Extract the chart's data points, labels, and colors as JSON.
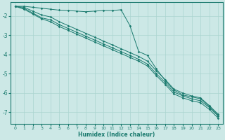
{
  "xlabel": "Humidex (Indice chaleur)",
  "background_color": "#cce8e6",
  "grid_color": "#aad4d0",
  "line_color": "#1a7a6e",
  "xlim": [
    -0.5,
    23.5
  ],
  "ylim": [
    -7.6,
    -1.3
  ],
  "yticks": [
    -7,
    -6,
    -5,
    -4,
    -3,
    -2
  ],
  "xticks": [
    0,
    1,
    2,
    3,
    4,
    5,
    6,
    7,
    8,
    9,
    10,
    11,
    12,
    13,
    14,
    15,
    16,
    17,
    18,
    19,
    20,
    21,
    22,
    23
  ],
  "series1_x": [
    0,
    1,
    2,
    3,
    4,
    5,
    6,
    7,
    8,
    9,
    10,
    11,
    12,
    13,
    14,
    15,
    16,
    17,
    18,
    19,
    20,
    21,
    22,
    23
  ],
  "series1_y": [
    -1.5,
    -1.5,
    -1.55,
    -1.6,
    -1.65,
    -1.7,
    -1.72,
    -1.75,
    -1.78,
    -1.75,
    -1.72,
    -1.72,
    -1.68,
    -2.5,
    -3.85,
    -4.05,
    -4.75,
    -5.35,
    -5.85,
    -6.1,
    -6.2,
    -6.3,
    -6.7,
    -7.15
  ],
  "series2_x": [
    0,
    1,
    2,
    3,
    4,
    5,
    6,
    7,
    8,
    9,
    10,
    11,
    12,
    13,
    14,
    15,
    16,
    17,
    18,
    19,
    20,
    21,
    22,
    23
  ],
  "series2_y": [
    -1.5,
    -1.6,
    -1.85,
    -2.1,
    -2.2,
    -2.45,
    -2.65,
    -2.85,
    -3.05,
    -3.25,
    -3.45,
    -3.65,
    -3.85,
    -4.05,
    -4.25,
    -4.5,
    -5.0,
    -5.45,
    -5.95,
    -6.15,
    -6.3,
    -6.4,
    -6.75,
    -7.2
  ],
  "series3_x": [
    0,
    1,
    2,
    3,
    4,
    5,
    6,
    7,
    8,
    9,
    10,
    11,
    12,
    13,
    14,
    15,
    16,
    17,
    18,
    19,
    20,
    21,
    22,
    23
  ],
  "series3_y": [
    -1.5,
    -1.65,
    -1.9,
    -2.15,
    -2.3,
    -2.55,
    -2.75,
    -2.95,
    -3.15,
    -3.35,
    -3.55,
    -3.75,
    -3.95,
    -4.15,
    -4.35,
    -4.6,
    -5.1,
    -5.55,
    -6.05,
    -6.25,
    -6.4,
    -6.5,
    -6.85,
    -7.3
  ],
  "series4_x": [
    0,
    1,
    2,
    3,
    4,
    5,
    6,
    7,
    8,
    9,
    10,
    11,
    12,
    13,
    14,
    15,
    16,
    17,
    18,
    19,
    20,
    21,
    22,
    23
  ],
  "series4_y": [
    -1.5,
    -1.55,
    -1.75,
    -1.95,
    -2.05,
    -2.3,
    -2.5,
    -2.7,
    -2.9,
    -3.1,
    -3.3,
    -3.5,
    -3.7,
    -3.9,
    -4.1,
    -4.35,
    -4.85,
    -5.3,
    -5.8,
    -6.0,
    -6.15,
    -6.25,
    -6.65,
    -7.1
  ]
}
